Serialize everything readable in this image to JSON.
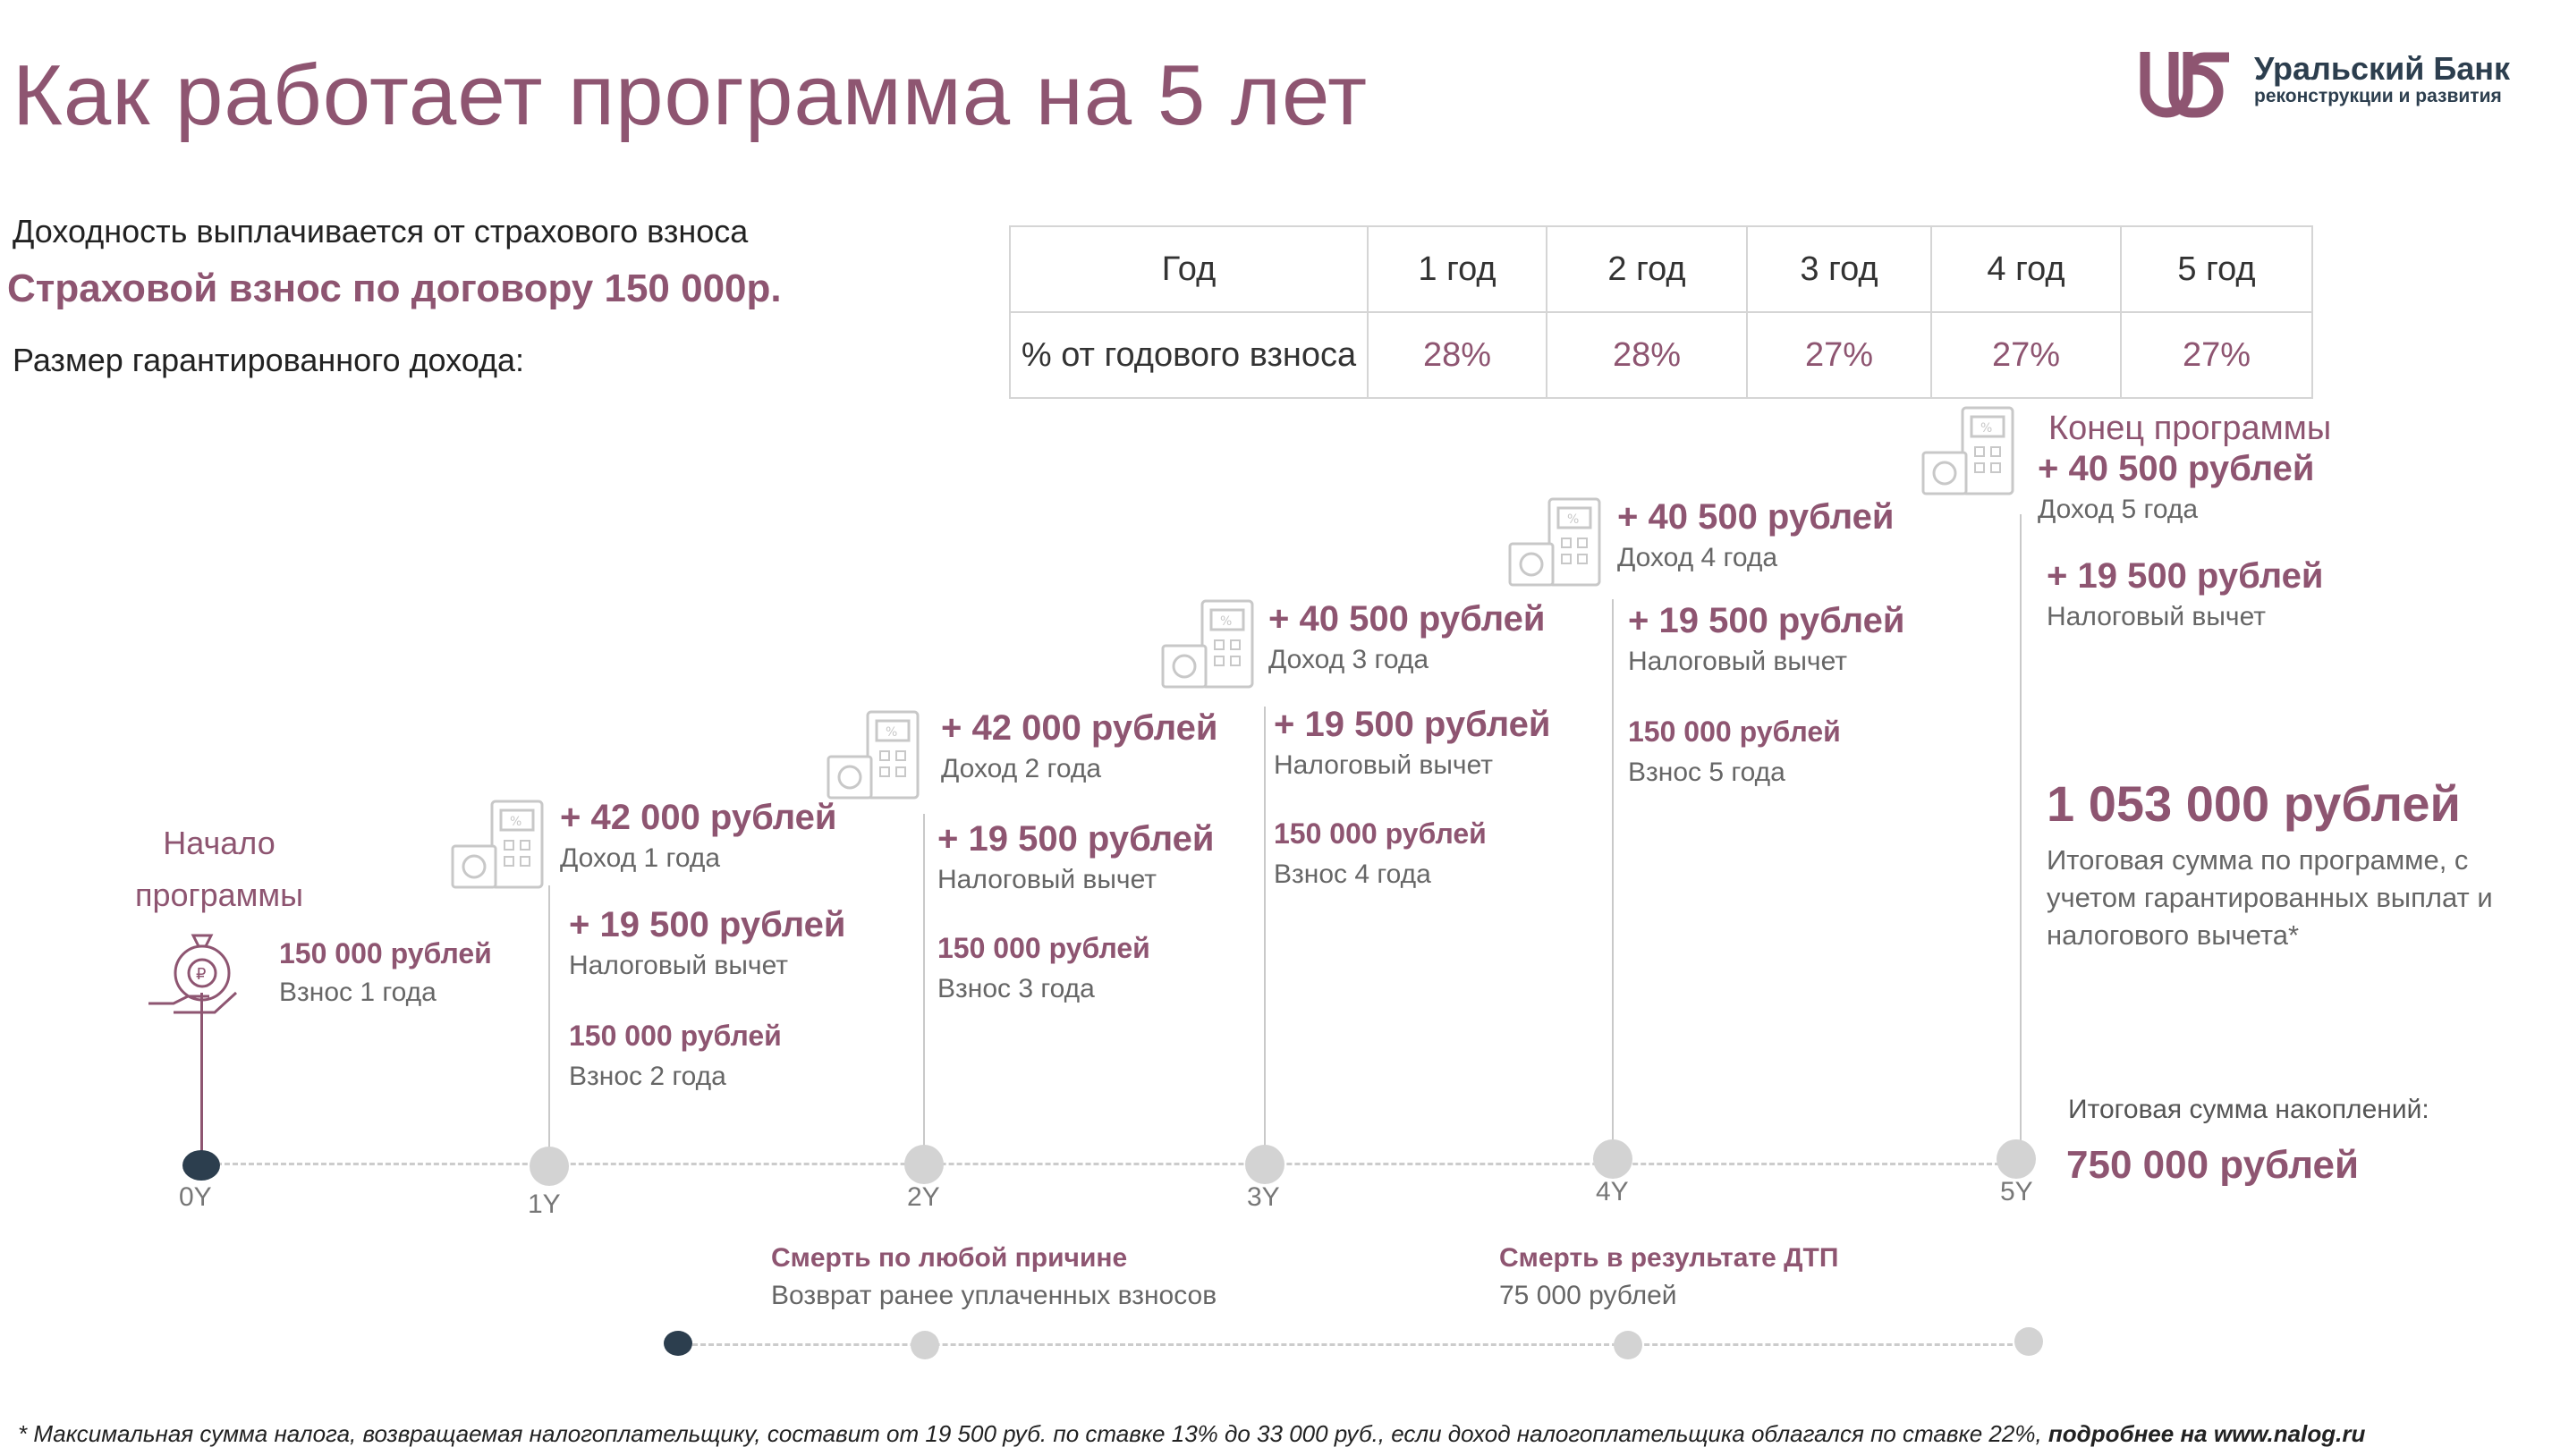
{
  "header": {
    "title": "Как работает программа на 5 лет",
    "logo_name": "Уральский Банк",
    "logo_sub": "реконструкции и развития"
  },
  "intro": {
    "line1": "Доходность выплачивается от страхового взноса",
    "line2": "Страховой взнос по договору 150 000р.",
    "line3": "Размер гарантированного дохода:"
  },
  "rates_table": {
    "header": [
      "Год",
      "1 год",
      "2 год",
      "3 год",
      "4 год",
      "5 год"
    ],
    "row_label": "% от годового взноса",
    "values": [
      "28%",
      "28%",
      "27%",
      "27%",
      "27%"
    ]
  },
  "timeline": {
    "start_label": "Начало программы",
    "end_label": "Конец программы",
    "year_labels": [
      "0Y",
      "1Y",
      "2Y",
      "3Y",
      "4Y",
      "5Y"
    ],
    "steps": [
      {
        "contribution": "150 000 рублей",
        "contribution_label": "Взнос 1 года"
      },
      {
        "income": "+ 42 000 рублей",
        "income_label": "Доход 1 года",
        "tax": "+ 19 500 рублей",
        "tax_label": "Налоговый вычет",
        "contribution": "150 000 рублей",
        "contribution_label": "Взнос 2 года"
      },
      {
        "income": "+ 42 000 рублей",
        "income_label": "Доход 2 года",
        "tax": "+ 19 500 рублей",
        "tax_label": "Налоговый вычет",
        "contribution": "150 000 рублей",
        "contribution_label": "Взнос 3 года"
      },
      {
        "income": "+ 40 500 рублей",
        "income_label": "Доход 3 года",
        "tax": "+ 19 500 рублей",
        "tax_label": "Налоговый вычет",
        "contribution": "150 000 рублей",
        "contribution_label": "Взнос 4 года"
      },
      {
        "income": "+ 40 500 рублей",
        "income_label": "Доход 4 года",
        "tax": "+ 19 500 рублей",
        "tax_label": "Налоговый вычет",
        "contribution": "150 000 рублей",
        "contribution_label": "Взнос 5 года"
      },
      {
        "income": "+ 40 500 рублей",
        "income_label": "Доход 5 года",
        "tax": "+ 19 500 рублей",
        "tax_label": "Налоговый вычет"
      }
    ]
  },
  "totals": {
    "program_total": "1 053 000 рублей",
    "program_total_desc": "Итоговая сумма по программе, с учетом гарантированных выплат и налогового вычета*",
    "savings_label": "Итоговая сумма накоплений:",
    "savings_value": "750 000 рублей"
  },
  "risks": {
    "death_any": {
      "title": "Смерть по любой причине",
      "desc": "Возврат ранее уплаченных взносов"
    },
    "death_dtp": {
      "title": "Смерть в результате ДТП",
      "desc": "75 000 рублей"
    }
  },
  "footnote": {
    "text": "* Максимальная сумма налога, возвращаемая налогоплательщику, составит от 19 500 руб. по ставке 13% до 33 000 руб., если доход налогоплательщика облагался по ставке 22%, ",
    "bold": "подробнее на www.nalog.ru"
  },
  "colors": {
    "accent": "#8e5571",
    "dark": "#2c3e4e",
    "line": "#cccccc"
  },
  "icons": [
    "logo-ub-icon",
    "money-bag-hand-icon",
    "calculator-coins-icon"
  ]
}
